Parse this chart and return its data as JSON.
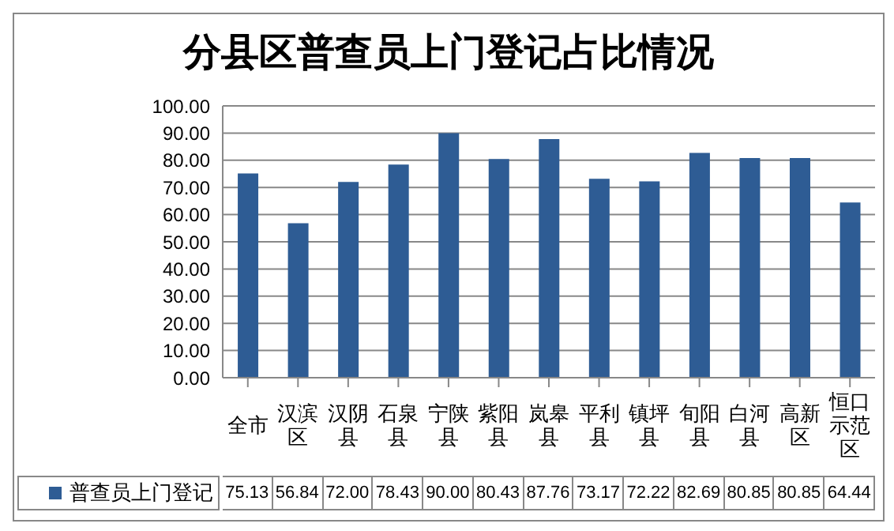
{
  "chart_data": {
    "type": "bar",
    "title": "分县区普查员上门登记占比情况",
    "categories": [
      "全市",
      "汉滨区",
      "汉阴县",
      "石泉县",
      "宁陕县",
      "紫阳县",
      "岚皋县",
      "平利县",
      "镇坪县",
      "旬阳县",
      "白河县",
      "高新区",
      "恒口示范区"
    ],
    "series": [
      {
        "name": "普查员上门登记",
        "color": "#2e5c94",
        "values": [
          75.13,
          56.84,
          72.0,
          78.43,
          90.0,
          80.43,
          87.76,
          73.17,
          72.22,
          82.69,
          80.85,
          80.85,
          64.44
        ],
        "value_labels": [
          "75.13",
          "56.84",
          "72.00",
          "78.43",
          "90.00",
          "80.43",
          "87.76",
          "73.17",
          "72.22",
          "82.69",
          "80.85",
          "80.85",
          "64.44"
        ]
      }
    ],
    "ylim": [
      0,
      100
    ],
    "yticks": [
      {
        "value": 0,
        "label": "0.00"
      },
      {
        "value": 10,
        "label": "10.00"
      },
      {
        "value": 20,
        "label": "20.00"
      },
      {
        "value": 30,
        "label": "30.00"
      },
      {
        "value": 40,
        "label": "40.00"
      },
      {
        "value": 50,
        "label": "50.00"
      },
      {
        "value": 60,
        "label": "60.00"
      },
      {
        "value": 70,
        "label": "70.00"
      },
      {
        "value": 80,
        "label": "80.00"
      },
      {
        "value": 90,
        "label": "90.00"
      },
      {
        "value": 100,
        "label": "100.00"
      }
    ],
    "grid": "y",
    "legend": "bottom left"
  }
}
